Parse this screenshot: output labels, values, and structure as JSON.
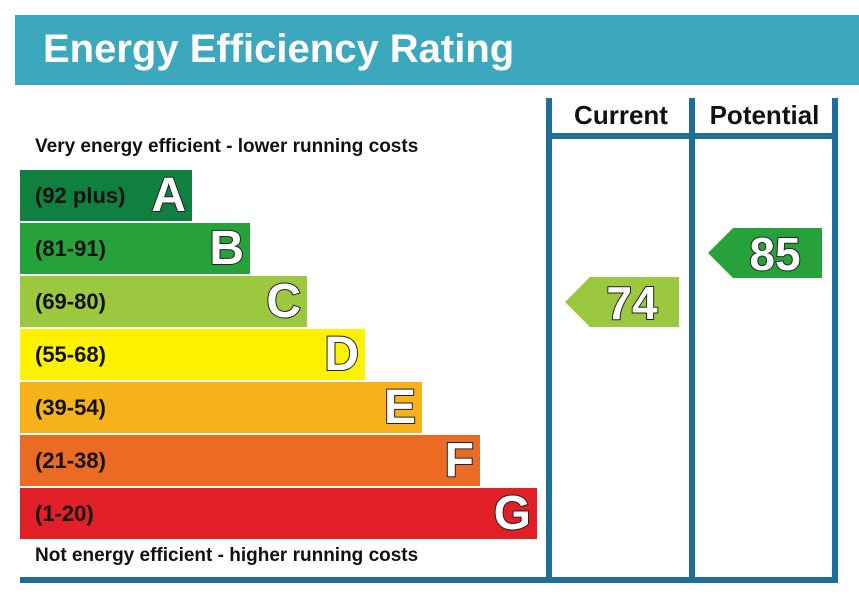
{
  "title": "Energy Efficiency Rating",
  "top_caption": "Very energy efficient - lower running costs",
  "bottom_caption": "Not energy efficient - higher running costs",
  "columns": {
    "current": "Current",
    "potential": "Potential"
  },
  "colors": {
    "title_bar": "#3ba8bd",
    "frame": "#1c6f96",
    "A": "#0f8040",
    "B": "#27a23a",
    "C": "#9bc83f",
    "D": "#fff200",
    "E": "#f6b21b",
    "F": "#eb6a24",
    "G": "#e01f26"
  },
  "chart_data": {
    "type": "bar",
    "title": "Energy Efficiency Rating",
    "categories": [
      "A",
      "B",
      "C",
      "D",
      "E",
      "F",
      "G"
    ],
    "bands": [
      {
        "letter": "A",
        "range": "(92 plus)",
        "min": 92,
        "max": 100
      },
      {
        "letter": "B",
        "range": "(81-91)",
        "min": 81,
        "max": 91
      },
      {
        "letter": "C",
        "range": "(69-80)",
        "min": 69,
        "max": 80
      },
      {
        "letter": "D",
        "range": "(55-68)",
        "min": 55,
        "max": 68
      },
      {
        "letter": "E",
        "range": "(39-54)",
        "min": 39,
        "max": 54
      },
      {
        "letter": "F",
        "range": "(21-38)",
        "min": 21,
        "max": 38
      },
      {
        "letter": "G",
        "range": "(1-20)",
        "min": 1,
        "max": 20
      }
    ],
    "series": [
      {
        "name": "Current",
        "value": 74,
        "band": "C"
      },
      {
        "name": "Potential",
        "value": 85,
        "band": "B"
      }
    ]
  }
}
